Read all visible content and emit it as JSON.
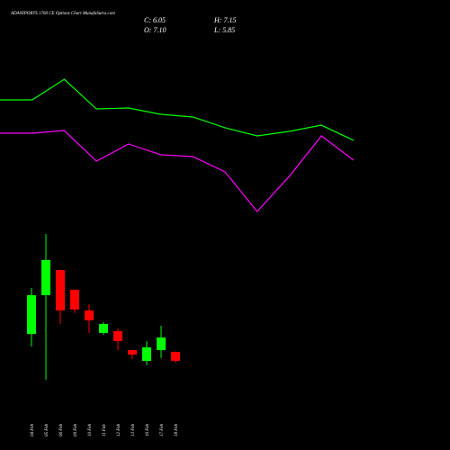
{
  "header": {
    "title": "ADANIPORTS 1760 CE Options Chart MunafaSutra.com",
    "close": "C: 6.05",
    "high": "H: 7.15",
    "open": "O: 7.10",
    "low": "L: 5.85"
  },
  "chart_data": [
    {
      "type": "candlestick",
      "categories": [
        "04 Feb",
        "05 Feb",
        "06 Feb",
        "09 Feb",
        "10 Feb",
        "11 Feb",
        "12 Feb",
        "13 Feb",
        "16 Feb",
        "17 Feb",
        "18 Feb"
      ],
      "open": [
        9.2,
        13.72,
        16.66,
        14.35,
        11.93,
        9.31,
        9.52,
        7.31,
        6.05,
        7.31,
        7.1
      ],
      "high": [
        14.56,
        20.86,
        16.66,
        14.35,
        12.67,
        10.57,
        9.83,
        7.31,
        8.36,
        10.15,
        7.15
      ],
      "low": [
        7.73,
        3.85,
        10.36,
        11.62,
        9.31,
        9.1,
        7.31,
        6.26,
        5.53,
        6.37,
        5.85
      ],
      "close": [
        13.72,
        17.81,
        11.93,
        12.04,
        10.78,
        10.36,
        8.36,
        6.79,
        7.63,
        8.78,
        6.05
      ],
      "up_color": "#00ff00",
      "down_color": "#ff0000",
      "ylim": [
        -4.35,
        48.16
      ]
    },
    {
      "type": "line",
      "x": [
        0,
        1,
        2,
        3,
        4,
        5,
        6,
        7,
        8,
        9,
        10,
        11
      ],
      "xlim": [
        0,
        14
      ],
      "ylim": [
        -4.35,
        48.16
      ],
      "series": [
        {
          "color": "#00ff00",
          "values": [
            36.5,
            36.5,
            38.9,
            35.45,
            35.56,
            34.82,
            34.51,
            33.25,
            32.3,
            32.83,
            33.56,
            31.78
          ]
        },
        {
          "color": "#ff00ff",
          "values": [
            32.62,
            32.62,
            32.93,
            29.36,
            31.36,
            30.1,
            29.89,
            28.1,
            23.48,
            27.58,
            32.3,
            29.47
          ]
        }
      ]
    }
  ]
}
